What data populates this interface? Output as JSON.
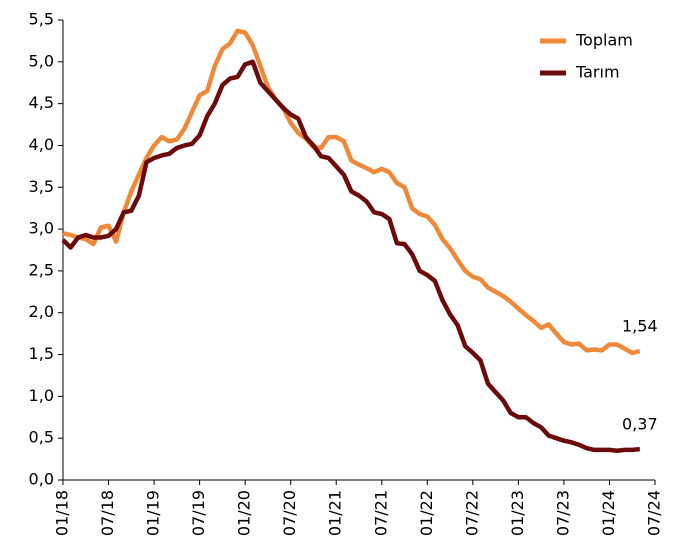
{
  "chart_data": {
    "type": "line",
    "categories": [
      "01/18",
      null,
      null,
      null,
      null,
      null,
      "07/18",
      null,
      null,
      null,
      null,
      null,
      "01/19",
      null,
      null,
      null,
      null,
      null,
      "07/19",
      null,
      null,
      null,
      null,
      null,
      "01/20",
      null,
      null,
      null,
      null,
      null,
      "07/20",
      null,
      null,
      null,
      null,
      null,
      "01/21",
      null,
      null,
      null,
      null,
      null,
      "07/21",
      null,
      null,
      null,
      null,
      null,
      "01/22",
      null,
      null,
      null,
      null,
      null,
      "07/22",
      null,
      null,
      null,
      null,
      null,
      "01/23",
      null,
      null,
      null,
      null,
      null,
      "07/23",
      null,
      null,
      null,
      null,
      null,
      "01/24",
      null,
      null,
      null,
      null,
      null,
      "07/24"
    ],
    "series": [
      {
        "name": "Toplam",
        "color": "#f0883a",
        "values": [
          2.95,
          2.93,
          2.9,
          2.88,
          2.82,
          3.02,
          3.04,
          2.85,
          3.2,
          3.45,
          3.65,
          3.85,
          4.0,
          4.1,
          4.05,
          4.07,
          4.2,
          4.4,
          4.6,
          4.65,
          4.95,
          5.15,
          5.22,
          5.37,
          5.35,
          5.2,
          4.95,
          4.7,
          4.55,
          4.45,
          4.27,
          4.15,
          4.08,
          3.98,
          3.97,
          4.1,
          4.1,
          4.05,
          3.82,
          3.77,
          3.73,
          3.68,
          3.72,
          3.68,
          3.55,
          3.5,
          3.25,
          3.18,
          3.15,
          3.05,
          2.88,
          2.77,
          2.63,
          2.5,
          2.43,
          2.4,
          2.3,
          2.25,
          2.2,
          2.13,
          2.05,
          1.97,
          1.9,
          1.82,
          1.86,
          1.75,
          1.65,
          1.62,
          1.63,
          1.55,
          1.56,
          1.55,
          1.62,
          1.62,
          1.57,
          1.52,
          1.54,
          null,
          null
        ],
        "value_labels": [
          null,
          null,
          null,
          null,
          null,
          null,
          null,
          null,
          null,
          null,
          null,
          null,
          null,
          null,
          null,
          null,
          null,
          null,
          null,
          null,
          null,
          null,
          null,
          null,
          null,
          null,
          null,
          null,
          null,
          null,
          null,
          null,
          null,
          null,
          null,
          null,
          null,
          null,
          null,
          null,
          null,
          null,
          null,
          null,
          null,
          null,
          null,
          null,
          null,
          null,
          null,
          null,
          null,
          null,
          null,
          null,
          null,
          null,
          null,
          null,
          null,
          null,
          null,
          null,
          null,
          null,
          null,
          null,
          null,
          null,
          null,
          null,
          null,
          null,
          null,
          null,
          "1,54",
          null,
          null
        ]
      },
      {
        "name": "Tarım",
        "color": "#6b0b0b",
        "values": [
          2.87,
          2.78,
          2.9,
          2.93,
          2.9,
          2.9,
          2.92,
          3.0,
          3.2,
          3.22,
          3.4,
          3.8,
          3.85,
          3.88,
          3.9,
          3.97,
          4.0,
          4.02,
          4.12,
          4.35,
          4.5,
          4.72,
          4.8,
          4.82,
          4.97,
          5.0,
          4.75,
          4.65,
          4.55,
          4.45,
          4.37,
          4.32,
          4.1,
          4.0,
          3.87,
          3.85,
          3.75,
          3.65,
          3.45,
          3.4,
          3.33,
          3.2,
          3.18,
          3.12,
          2.83,
          2.82,
          2.7,
          2.5,
          2.45,
          2.38,
          2.15,
          1.98,
          1.85,
          1.6,
          1.52,
          1.43,
          1.15,
          1.05,
          0.95,
          0.8,
          0.75,
          0.75,
          0.68,
          0.63,
          0.53,
          0.5,
          0.47,
          0.45,
          0.42,
          0.38,
          0.36,
          0.36,
          0.36,
          0.35,
          0.36,
          0.36,
          0.37,
          null,
          null
        ],
        "value_labels": [
          null,
          null,
          null,
          null,
          null,
          null,
          null,
          null,
          null,
          null,
          null,
          null,
          null,
          null,
          null,
          null,
          null,
          null,
          null,
          null,
          null,
          null,
          null,
          null,
          null,
          null,
          null,
          null,
          null,
          null,
          null,
          null,
          null,
          null,
          null,
          null,
          null,
          null,
          null,
          null,
          null,
          null,
          null,
          null,
          null,
          null,
          null,
          null,
          null,
          null,
          null,
          null,
          null,
          null,
          null,
          null,
          null,
          null,
          null,
          null,
          null,
          null,
          null,
          null,
          null,
          null,
          null,
          null,
          null,
          null,
          null,
          null,
          null,
          null,
          null,
          null,
          "0,37",
          null,
          null
        ]
      }
    ],
    "ylim": [
      0,
      5.5
    ],
    "yticks": [
      {
        "value": 0,
        "label": "0,0"
      },
      {
        "value": 0.5,
        "label": "0,5"
      },
      {
        "value": 1,
        "label": "1,0"
      },
      {
        "value": 1.5,
        "label": "1,5"
      },
      {
        "value": 2,
        "label": "2,0"
      },
      {
        "value": 2.5,
        "label": "2,5"
      },
      {
        "value": 3,
        "label": "3,0"
      },
      {
        "value": 3.5,
        "label": "3,5"
      },
      {
        "value": 4,
        "label": "4,0"
      },
      {
        "value": 4.5,
        "label": "4,5"
      },
      {
        "value": 5,
        "label": "5,0"
      },
      {
        "value": 5.5,
        "label": "5,5"
      }
    ],
    "legend": "upper right",
    "grid": false
  }
}
